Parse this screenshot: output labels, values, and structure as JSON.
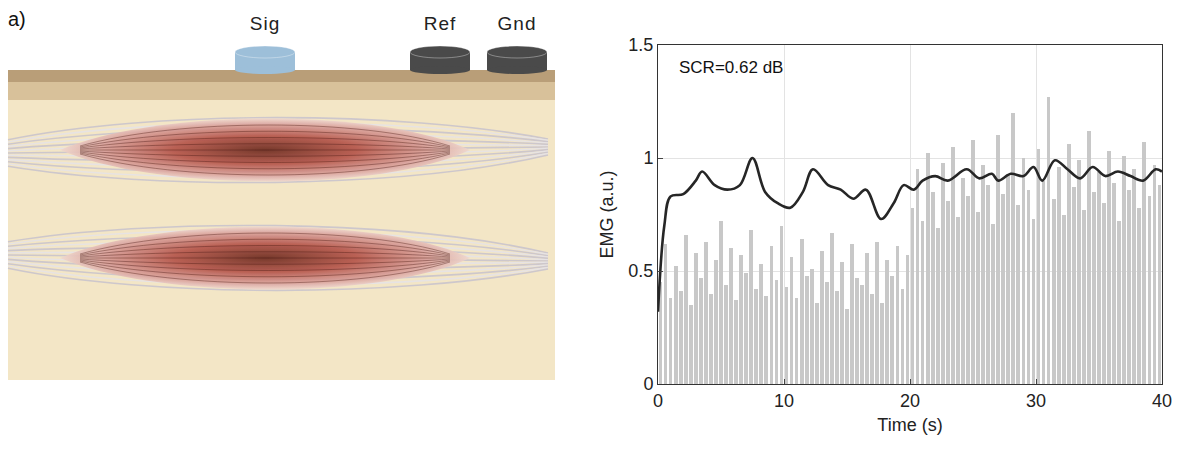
{
  "diagram": {
    "panel_label": "a)",
    "electrodes": [
      {
        "label": "Sig",
        "color": "#9dbfd9"
      },
      {
        "label": "Ref",
        "color": "#4a4a4a"
      },
      {
        "label": "Gnd",
        "color": "#4a4a4a"
      }
    ]
  },
  "chart_data": {
    "type": "line",
    "x_label": "Time (s)",
    "y_label": "EMG (a.u.)",
    "xlim": [
      0,
      40
    ],
    "ylim": [
      0,
      1.5
    ],
    "xticks": [
      0,
      10,
      20,
      30,
      40
    ],
    "yticks": [
      0,
      0.5,
      1,
      1.5
    ],
    "grid": true,
    "annotations": [
      {
        "text": "SCR=0.62 dB",
        "x": 1.5,
        "y": 1.4
      }
    ],
    "series": [
      {
        "type": "bar",
        "color": "#c8c8c8",
        "x": [
          0.2,
          0.6,
          1,
          1.4,
          1.8,
          2.2,
          2.6,
          3,
          3.4,
          3.8,
          4.2,
          4.6,
          5,
          5.4,
          5.8,
          6.2,
          6.6,
          7,
          7.4,
          7.8,
          8.2,
          8.6,
          9,
          9.4,
          9.8,
          10.2,
          10.6,
          11,
          11.4,
          11.8,
          12.2,
          12.6,
          13,
          13.4,
          13.8,
          14.2,
          14.6,
          15,
          15.4,
          15.8,
          16.2,
          16.6,
          17,
          17.4,
          17.8,
          18.2,
          18.6,
          19,
          19.4,
          19.8,
          20.2,
          20.6,
          21,
          21.4,
          21.8,
          22.2,
          22.6,
          23,
          23.4,
          23.8,
          24.2,
          24.6,
          25,
          25.4,
          25.8,
          26.2,
          26.6,
          27,
          27.4,
          27.8,
          28.2,
          28.6,
          29,
          29.4,
          29.8,
          30.2,
          30.6,
          31,
          31.4,
          31.8,
          32.2,
          32.6,
          33,
          33.4,
          33.8,
          34.2,
          34.6,
          35,
          35.4,
          35.8,
          36.2,
          36.6,
          37,
          37.4,
          37.8,
          38.2,
          38.6,
          39,
          39.4,
          39.8
        ],
        "values": [
          0.45,
          0.62,
          0.38,
          0.52,
          0.41,
          0.66,
          0.35,
          0.58,
          0.47,
          0.63,
          0.4,
          0.55,
          0.72,
          0.44,
          0.6,
          0.37,
          0.57,
          0.49,
          0.68,
          0.42,
          0.53,
          0.39,
          0.61,
          0.46,
          0.7,
          0.43,
          0.56,
          0.38,
          0.64,
          0.48,
          0.51,
          0.36,
          0.59,
          0.45,
          0.67,
          0.41,
          0.54,
          0.33,
          0.62,
          0.47,
          0.44,
          0.58,
          0.4,
          0.63,
          0.36,
          0.55,
          0.48,
          0.61,
          0.42,
          0.57,
          0.78,
          0.95,
          0.72,
          1.02,
          0.85,
          0.69,
          0.98,
          0.81,
          1.05,
          0.74,
          0.91,
          0.83,
          1.08,
          0.76,
          0.97,
          0.88,
          0.71,
          1.1,
          0.84,
          0.93,
          1.2,
          0.79,
          1.0,
          0.86,
          0.73,
          1.04,
          0.9,
          1.27,
          0.82,
          0.96,
          0.75,
          1.06,
          0.87,
          0.99,
          0.77,
          1.12,
          0.85,
          0.94,
          0.8,
          1.03,
          0.89,
          0.72,
          1.01,
          0.86,
          0.95,
          0.78,
          1.07,
          0.83,
          0.97,
          0.88
        ]
      },
      {
        "type": "line",
        "color": "#262626",
        "line_style": "solid",
        "x": [
          0,
          0.5,
          1,
          2,
          3,
          3.5,
          4.5,
          5.5,
          6.5,
          7.5,
          8.5,
          9.5,
          10.5,
          11.5,
          12.3,
          13.5,
          14.5,
          15.5,
          16.5,
          17.7,
          18.7,
          19.5,
          20.3,
          21,
          22,
          23,
          24.5,
          25.5,
          26.5,
          27,
          28,
          29,
          29.8,
          30.5,
          31.5,
          32.5,
          33.5,
          34.5,
          35.5,
          36.5,
          37.5,
          38.5,
          39.5,
          40
        ],
        "values": [
          0.32,
          0.7,
          0.83,
          0.84,
          0.9,
          0.94,
          0.88,
          0.86,
          0.88,
          1.0,
          0.85,
          0.8,
          0.78,
          0.85,
          0.95,
          0.88,
          0.86,
          0.82,
          0.86,
          0.73,
          0.8,
          0.88,
          0.86,
          0.9,
          0.92,
          0.9,
          0.95,
          0.91,
          0.93,
          0.9,
          0.93,
          0.92,
          0.96,
          0.9,
          0.99,
          0.95,
          0.91,
          0.96,
          0.92,
          0.94,
          0.92,
          0.9,
          0.95,
          0.94
        ]
      }
    ]
  }
}
